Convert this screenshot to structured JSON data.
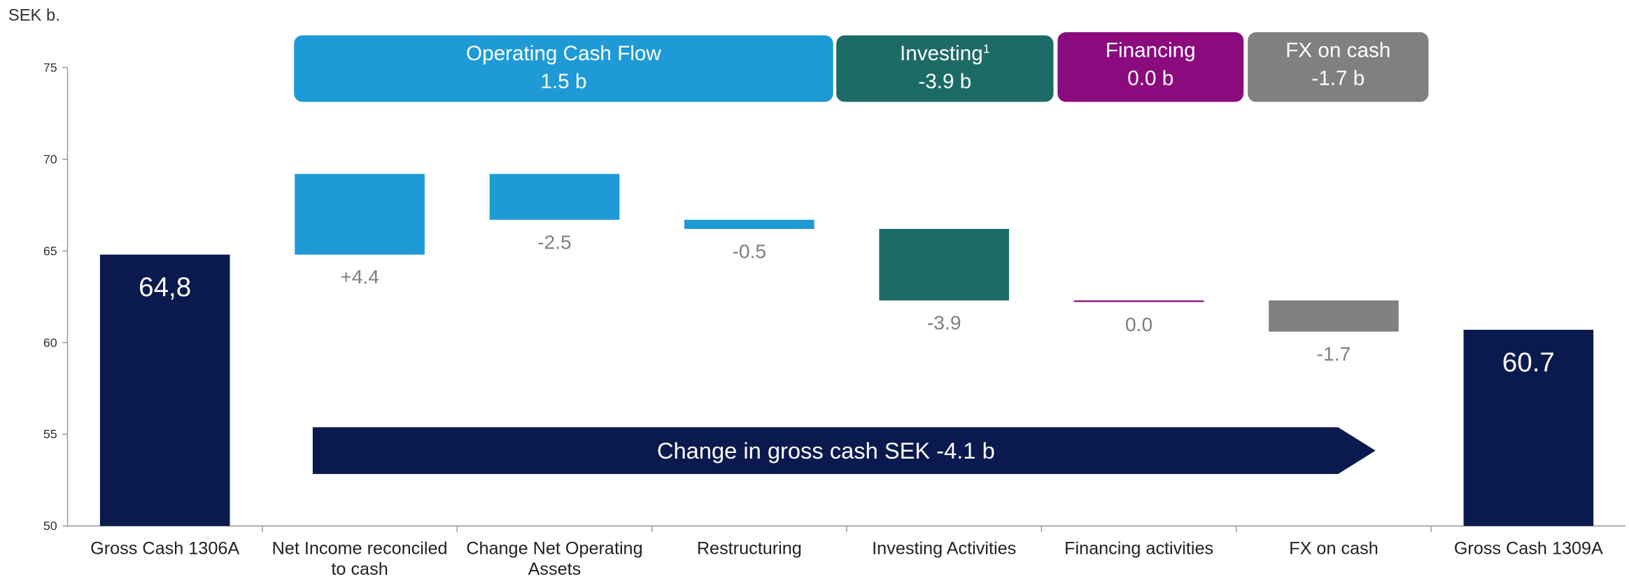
{
  "chart_data": {
    "type": "waterfall",
    "unit_label": "SEK b.",
    "categories": [
      "Gross Cash 1306A",
      "Net Income reconciled to cash",
      "Change Net Operating Assets",
      "Restructuring",
      "Investing Activities",
      "Financing activities",
      "FX on cash",
      "Gross Cash 1309A"
    ],
    "values": [
      64.8,
      4.4,
      -2.5,
      -0.5,
      -3.9,
      0.0,
      -1.7,
      60.7
    ],
    "value_labels": [
      "64,8",
      "+4.4",
      "-2.5",
      "-0.5",
      "-3.9",
      "0.0",
      "-1.7",
      "60.7"
    ],
    "colors": [
      "#0b1a4e",
      "#1e9ad6",
      "#1e9ad6",
      "#1e9ad6",
      "#1d6b66",
      "#8b0a7e",
      "#808080",
      "#0b1a4e"
    ],
    "ylim": [
      50,
      75
    ],
    "yticks": [
      50,
      55,
      60,
      65,
      70,
      75
    ],
    "groups": [
      {
        "label": "Operating Cash Flow",
        "sublabel": "1.5 b",
        "color": "#1e9ad6"
      },
      {
        "label": "Investing",
        "footnote": "1",
        "sublabel": "-3.9 b",
        "color": "#1d6b66"
      },
      {
        "label": "Financing",
        "sublabel": "0.0 b",
        "color": "#8b0a7e"
      },
      {
        "label": "FX on cash",
        "sublabel": "-1.7 b",
        "color": "#808080"
      }
    ],
    "arrow_label": "Change in gross cash SEK -4.1 b"
  }
}
